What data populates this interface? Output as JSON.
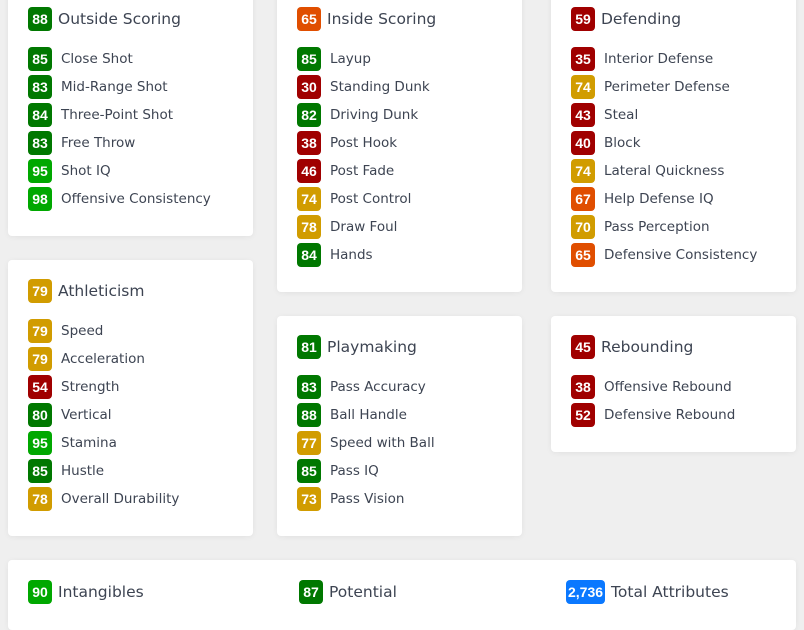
{
  "colors": {
    "elite": "#00a800",
    "great": "#007800",
    "good": "#d19c00",
    "average": "#e04e00",
    "poor": "#a00000",
    "total": "#0a78ff"
  },
  "groups": [
    {
      "name": "Outside Scoring",
      "value": "88",
      "items": [
        {
          "label": "Close Shot",
          "value": "85"
        },
        {
          "label": "Mid-Range Shot",
          "value": "83"
        },
        {
          "label": "Three-Point Shot",
          "value": "84"
        },
        {
          "label": "Free Throw",
          "value": "83"
        },
        {
          "label": "Shot IQ",
          "value": "95"
        },
        {
          "label": "Offensive Consistency",
          "value": "98"
        }
      ]
    },
    {
      "name": "Inside Scoring",
      "value": "65",
      "items": [
        {
          "label": "Layup",
          "value": "85"
        },
        {
          "label": "Standing Dunk",
          "value": "30"
        },
        {
          "label": "Driving Dunk",
          "value": "82"
        },
        {
          "label": "Post Hook",
          "value": "38"
        },
        {
          "label": "Post Fade",
          "value": "46"
        },
        {
          "label": "Post Control",
          "value": "74"
        },
        {
          "label": "Draw Foul",
          "value": "78"
        },
        {
          "label": "Hands",
          "value": "84"
        }
      ]
    },
    {
      "name": "Defending",
      "value": "59",
      "items": [
        {
          "label": "Interior Defense",
          "value": "35"
        },
        {
          "label": "Perimeter Defense",
          "value": "74"
        },
        {
          "label": "Steal",
          "value": "43"
        },
        {
          "label": "Block",
          "value": "40"
        },
        {
          "label": "Lateral Quickness",
          "value": "74"
        },
        {
          "label": "Help Defense IQ",
          "value": "67"
        },
        {
          "label": "Pass Perception",
          "value": "70"
        },
        {
          "label": "Defensive Consistency",
          "value": "65"
        }
      ]
    },
    {
      "name": "Athleticism",
      "value": "79",
      "items": [
        {
          "label": "Speed",
          "value": "79"
        },
        {
          "label": "Acceleration",
          "value": "79"
        },
        {
          "label": "Strength",
          "value": "54"
        },
        {
          "label": "Vertical",
          "value": "80"
        },
        {
          "label": "Stamina",
          "value": "95"
        },
        {
          "label": "Hustle",
          "value": "85"
        },
        {
          "label": "Overall Durability",
          "value": "78"
        }
      ]
    },
    {
      "name": "Playmaking",
      "value": "81",
      "items": [
        {
          "label": "Pass Accuracy",
          "value": "83"
        },
        {
          "label": "Ball Handle",
          "value": "88"
        },
        {
          "label": "Speed with Ball",
          "value": "77"
        },
        {
          "label": "Pass IQ",
          "value": "85"
        },
        {
          "label": "Pass Vision",
          "value": "73"
        }
      ]
    },
    {
      "name": "Rebounding",
      "value": "45",
      "items": [
        {
          "label": "Offensive Rebound",
          "value": "38"
        },
        {
          "label": "Defensive Rebound",
          "value": "52"
        }
      ]
    }
  ],
  "summary": [
    {
      "label": "Intangibles",
      "value": "90"
    },
    {
      "label": "Potential",
      "value": "87"
    },
    {
      "label": "Total Attributes",
      "value": "2,736"
    }
  ]
}
